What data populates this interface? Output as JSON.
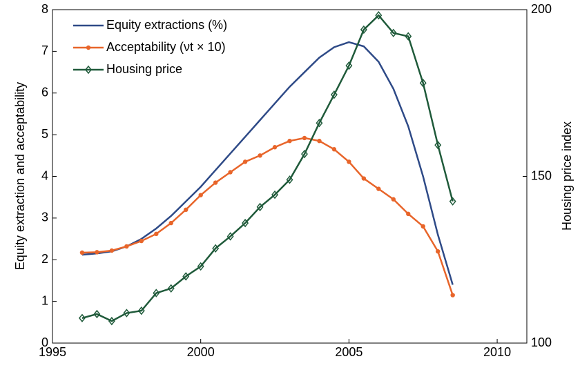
{
  "chart_data": {
    "type": "line",
    "x": [
      1996,
      1996.5,
      1997,
      1997.5,
      1998,
      1998.5,
      1999,
      1999.5,
      2000,
      2000.5,
      2001,
      2001.5,
      2002,
      2002.5,
      2003,
      2003.5,
      2004,
      2004.5,
      2005,
      2005.5,
      2006,
      2006.5,
      2007,
      2007.5,
      2008,
      2008.5
    ],
    "series": [
      {
        "name": "Equity extractions (%)",
        "color": "#2e4a87",
        "marker": "none",
        "values": [
          2.12,
          2.15,
          2.2,
          2.32,
          2.5,
          2.75,
          3.05,
          3.4,
          3.75,
          4.15,
          4.55,
          4.95,
          5.35,
          5.75,
          6.15,
          6.5,
          6.85,
          7.1,
          7.22,
          7.12,
          6.75,
          6.1,
          5.2,
          4.0,
          2.6,
          1.4
        ]
      },
      {
        "name": "Acceptability (νt × 10)",
        "color": "#e8652a",
        "marker": "circle",
        "values": [
          2.17,
          2.18,
          2.22,
          2.32,
          2.45,
          2.62,
          2.88,
          3.2,
          3.55,
          3.85,
          4.1,
          4.35,
          4.5,
          4.7,
          4.85,
          4.92,
          4.85,
          4.65,
          4.35,
          3.95,
          3.7,
          3.45,
          3.1,
          2.8,
          2.2,
          1.15
        ]
      },
      {
        "name": "Housing price",
        "color": "#1f5a3a",
        "marker": "diamond",
        "axis": "y2",
        "values": [
          107.5,
          108.7,
          106.6,
          109,
          109.7,
          115,
          116.4,
          120,
          123,
          128.4,
          132,
          136,
          140.8,
          144.5,
          149,
          156.7,
          166,
          174.5,
          183.2,
          194,
          198.3,
          193,
          192,
          178,
          159.4,
          142.5
        ]
      }
    ],
    "ylabel": "Equity extraction and acceptability",
    "y2label": "Housing price index",
    "xlim": [
      1995,
      2011
    ],
    "xticks": [
      1995,
      2000,
      2005,
      2010
    ],
    "ylim": [
      0,
      8
    ],
    "yticks": [
      0,
      1,
      2,
      3,
      4,
      5,
      6,
      7,
      8
    ],
    "y2lim": [
      100,
      200
    ],
    "y2ticks": [
      100,
      150,
      200
    ],
    "legend": "upper-left",
    "grid": false
  }
}
